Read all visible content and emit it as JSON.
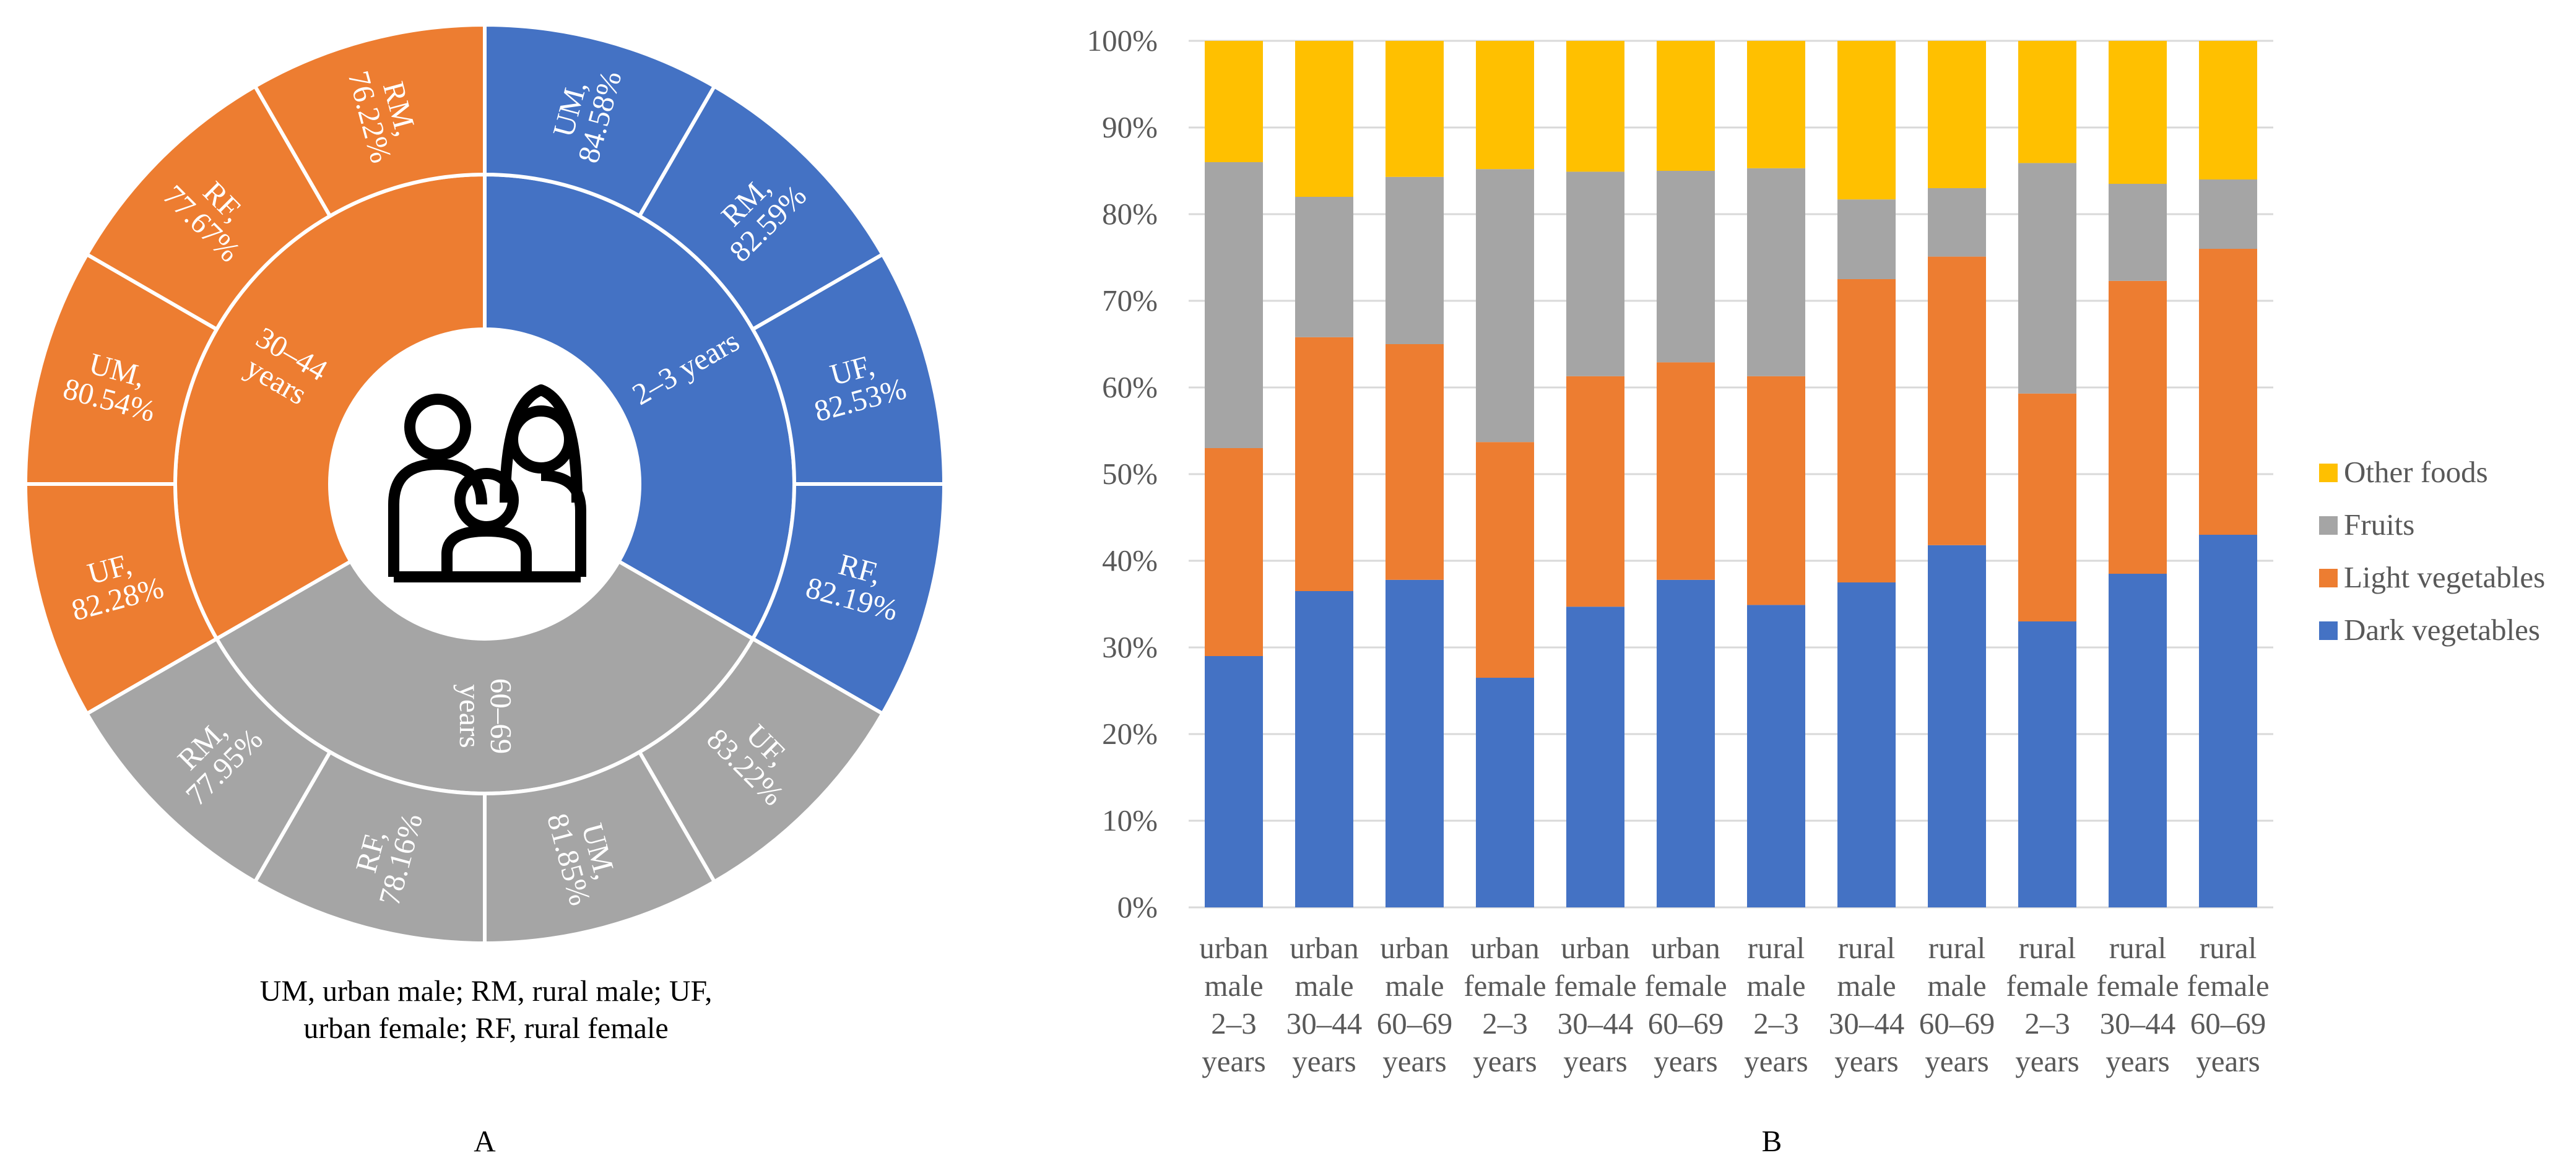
{
  "chart_data": [
    {
      "type": "sunburst",
      "panel_label": "A",
      "center_icon": "family-icon",
      "caption_lines": [
        "UM, urban male; RM, rural male; UF,",
        "urban female; RF, rural female"
      ],
      "groups": [
        {
          "label": "2–3 years",
          "color": "#4472C4",
          "segments": [
            {
              "label": "UM,",
              "value": "84.58%"
            },
            {
              "label": "RM,",
              "value": "82.59%"
            },
            {
              "label": "UF,",
              "value": "82.53%"
            },
            {
              "label": "RF,",
              "value": "82.19%"
            }
          ]
        },
        {
          "label": "60–69 years",
          "color": "#A5A5A5",
          "segments": [
            {
              "label": "UF,",
              "value": "83.22%"
            },
            {
              "label": "UM,",
              "value": "81.85%"
            },
            {
              "label": "RF,",
              "value": "78.16%"
            },
            {
              "label": "RM,",
              "value": "77.95%"
            }
          ]
        },
        {
          "label": "30–44 years",
          "color": "#ED7D31",
          "segments": [
            {
              "label": "UF,",
              "value": "82.28%"
            },
            {
              "label": "UM,",
              "value": "80.54%"
            },
            {
              "label": "RF,",
              "value": "77.67%"
            },
            {
              "label": "RM,",
              "value": "76.22%"
            }
          ]
        }
      ]
    },
    {
      "type": "stacked-bar",
      "panel_label": "B",
      "y_ticks": [
        "0%",
        "10%",
        "20%",
        "30%",
        "40%",
        "50%",
        "60%",
        "70%",
        "80%",
        "90%",
        "100%"
      ],
      "ylim": [
        0,
        100
      ],
      "categories": [
        [
          "urban",
          "male",
          "2–3",
          "years"
        ],
        [
          "urban",
          "male",
          "30–44",
          "years"
        ],
        [
          "urban",
          "male",
          "60–69",
          "years"
        ],
        [
          "urban",
          "female",
          "2–3",
          "years"
        ],
        [
          "urban",
          "female",
          "30–44",
          "years"
        ],
        [
          "urban",
          "female",
          "60–69",
          "years"
        ],
        [
          "rural",
          "male",
          "2–3",
          "years"
        ],
        [
          "rural",
          "male",
          "30–44",
          "years"
        ],
        [
          "rural",
          "male",
          "60–69",
          "years"
        ],
        [
          "rural",
          "female",
          "2–3",
          "years"
        ],
        [
          "rural",
          "female",
          "30–44",
          "years"
        ],
        [
          "rural",
          "female",
          "60–69",
          "years"
        ]
      ],
      "series": [
        {
          "name": "Dark vegetables",
          "color": "#4472C4",
          "values": [
            29,
            36.5,
            37.8,
            26.5,
            34.7,
            37.8,
            34.9,
            37.5,
            41.8,
            33,
            38.5,
            43
          ]
        },
        {
          "name": "Light vegetables",
          "color": "#ED7D31",
          "values": [
            24,
            29.3,
            27.2,
            27.2,
            26.6,
            25.1,
            26.4,
            35,
            33.3,
            26.3,
            33.8,
            33
          ]
        },
        {
          "name": "Fruits",
          "color": "#A5A5A5",
          "values": [
            33,
            16.2,
            19.3,
            31.5,
            23.6,
            22.1,
            24,
            9.2,
            7.9,
            26.6,
            11.2,
            8
          ]
        },
        {
          "name": "Other foods",
          "color": "#FFC000",
          "values": [
            14,
            18,
            15.7,
            14.8,
            15.1,
            15,
            14.7,
            18.3,
            17,
            14.1,
            16.5,
            16
          ]
        }
      ],
      "legend": [
        "Other foods",
        "Fruits",
        "Light vegetables",
        "Dark vegetables"
      ],
      "legend_position": "right"
    }
  ]
}
